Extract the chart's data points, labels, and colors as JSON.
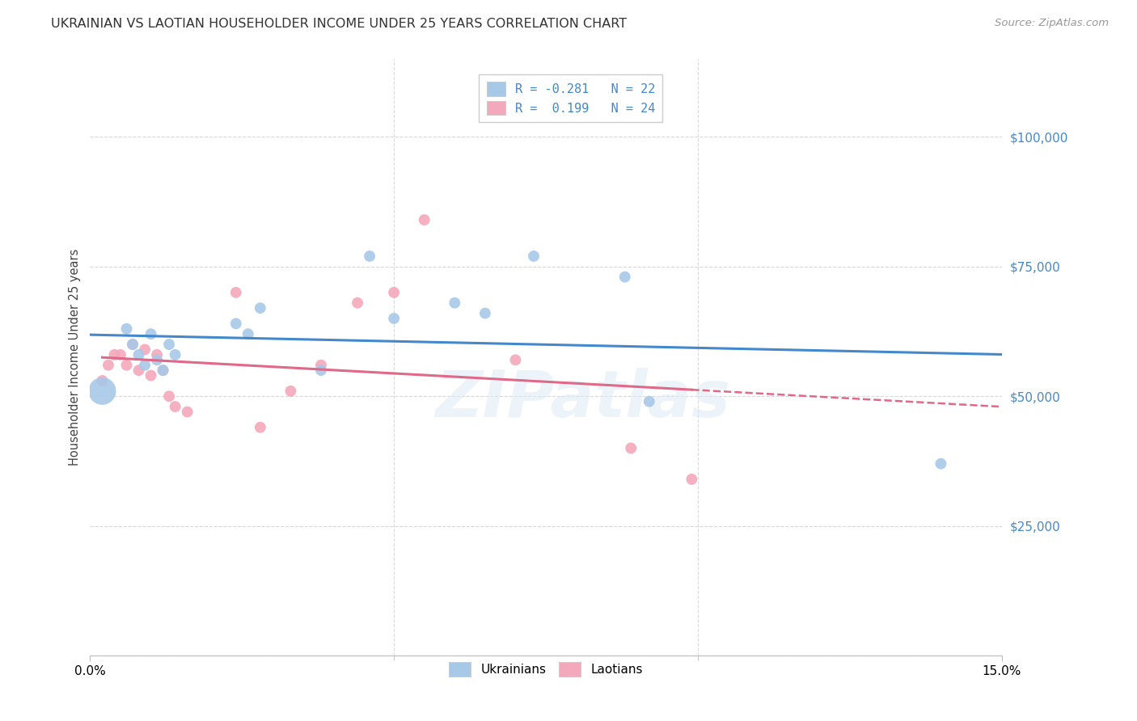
{
  "title": "UKRAINIAN VS LAOTIAN HOUSEHOLDER INCOME UNDER 25 YEARS CORRELATION CHART",
  "source": "Source: ZipAtlas.com",
  "ylabel": "Householder Income Under 25 years",
  "xlim": [
    0.0,
    0.15
  ],
  "ylim": [
    0,
    115000
  ],
  "yticks": [
    0,
    25000,
    50000,
    75000,
    100000
  ],
  "ytick_labels": [
    "",
    "$25,000",
    "$50,000",
    "$75,000",
    "$100,000"
  ],
  "background_color": "#ffffff",
  "grid_color": "#d8d8d8",
  "ukrainian_color": "#a8c8e8",
  "laotian_color": "#f4a8bc",
  "trend_blue": "#4488cc",
  "trend_pink": "#e06888",
  "R_ukrainian": -0.281,
  "N_ukrainian": 22,
  "R_laotian": 0.199,
  "N_laotian": 24,
  "ukrainians_x": [
    0.002,
    0.006,
    0.007,
    0.008,
    0.009,
    0.01,
    0.011,
    0.012,
    0.013,
    0.014,
    0.024,
    0.026,
    0.028,
    0.038,
    0.046,
    0.05,
    0.06,
    0.065,
    0.073,
    0.088,
    0.092,
    0.14
  ],
  "ukrainians_y": [
    51000,
    63000,
    60000,
    58000,
    56000,
    62000,
    57000,
    55000,
    60000,
    58000,
    64000,
    62000,
    67000,
    55000,
    77000,
    65000,
    68000,
    66000,
    77000,
    73000,
    49000,
    37000
  ],
  "ukrainians_size": [
    600,
    100,
    100,
    100,
    100,
    100,
    100,
    100,
    100,
    100,
    100,
    100,
    100,
    100,
    100,
    100,
    100,
    100,
    100,
    100,
    100,
    100
  ],
  "laotians_x": [
    0.002,
    0.003,
    0.004,
    0.005,
    0.006,
    0.007,
    0.008,
    0.009,
    0.01,
    0.011,
    0.012,
    0.013,
    0.014,
    0.016,
    0.024,
    0.028,
    0.033,
    0.038,
    0.044,
    0.05,
    0.055,
    0.07,
    0.089,
    0.099
  ],
  "laotians_y": [
    53000,
    56000,
    58000,
    58000,
    56000,
    60000,
    55000,
    59000,
    54000,
    58000,
    55000,
    50000,
    48000,
    47000,
    70000,
    44000,
    51000,
    56000,
    68000,
    70000,
    84000,
    57000,
    40000,
    34000
  ],
  "laotians_size": [
    100,
    100,
    100,
    100,
    100,
    100,
    100,
    100,
    100,
    100,
    100,
    100,
    100,
    100,
    100,
    100,
    100,
    100,
    100,
    100,
    100,
    100,
    100,
    100
  ],
  "watermark": "ZIPatlas",
  "title_fontsize": 11.5,
  "tick_fontsize": 11,
  "label_fontsize": 10.5,
  "source_fontsize": 9.5,
  "legend_fontsize": 11
}
